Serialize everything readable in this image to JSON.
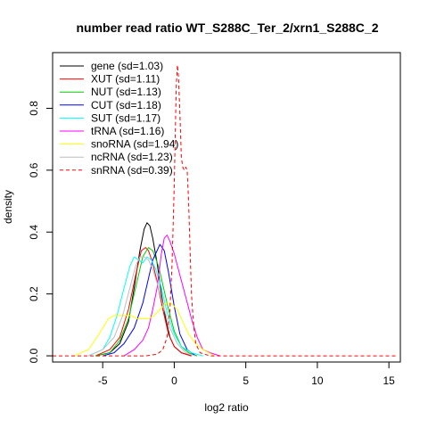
{
  "chart_data": {
    "type": "line",
    "title": "number read ratio WT_S288C_Ter_2/xrn1_S288C_2",
    "xlabel": "log2 ratio",
    "ylabel": "density",
    "xlim": [
      -8.5,
      15.8
    ],
    "ylim": [
      -0.02,
      0.98
    ],
    "x_ticks": [
      -5,
      0,
      5,
      10,
      15
    ],
    "y_ticks": [
      0.0,
      0.2,
      0.4,
      0.6,
      0.8
    ],
    "legend_position": "top-left",
    "series": [
      {
        "name": "gene (sd=1.03)",
        "color": "#000000",
        "dash": false,
        "points": [
          [
            -5.5,
            0.0
          ],
          [
            -4.5,
            0.01
          ],
          [
            -3.8,
            0.04
          ],
          [
            -3.2,
            0.11
          ],
          [
            -2.8,
            0.22
          ],
          [
            -2.4,
            0.34
          ],
          [
            -2.1,
            0.41
          ],
          [
            -1.9,
            0.43
          ],
          [
            -1.7,
            0.42
          ],
          [
            -1.5,
            0.38
          ],
          [
            -1.2,
            0.3
          ],
          [
            -0.9,
            0.2
          ],
          [
            -0.6,
            0.12
          ],
          [
            -0.3,
            0.06
          ],
          [
            0.0,
            0.03
          ],
          [
            0.5,
            0.01
          ],
          [
            1.2,
            0.0
          ]
        ]
      },
      {
        "name": "XUT (sd=1.11)",
        "color": "#ff0000",
        "dash": false,
        "points": [
          [
            -5.5,
            0.0
          ],
          [
            -4.5,
            0.02
          ],
          [
            -3.8,
            0.06
          ],
          [
            -3.2,
            0.15
          ],
          [
            -2.7,
            0.26
          ],
          [
            -2.3,
            0.34
          ],
          [
            -2.0,
            0.35
          ],
          [
            -1.8,
            0.34
          ],
          [
            -1.5,
            0.3
          ],
          [
            -1.2,
            0.24
          ],
          [
            -0.8,
            0.15
          ],
          [
            -0.4,
            0.07
          ],
          [
            0.0,
            0.03
          ],
          [
            0.5,
            0.01
          ],
          [
            1.2,
            0.0
          ]
        ]
      },
      {
        "name": "NUT (sd=1.13)",
        "color": "#00cc00",
        "dash": false,
        "points": [
          [
            -5.5,
            0.0
          ],
          [
            -4.5,
            0.01
          ],
          [
            -3.8,
            0.05
          ],
          [
            -3.2,
            0.12
          ],
          [
            -2.6,
            0.24
          ],
          [
            -2.2,
            0.32
          ],
          [
            -1.8,
            0.35
          ],
          [
            -1.5,
            0.34
          ],
          [
            -1.1,
            0.29
          ],
          [
            -0.8,
            0.23
          ],
          [
            -0.4,
            0.15
          ],
          [
            0.0,
            0.08
          ],
          [
            0.5,
            0.03
          ],
          [
            1.0,
            0.01
          ],
          [
            1.6,
            0.0
          ]
        ]
      },
      {
        "name": "CUT (sd=1.18)",
        "color": "#0000ff",
        "dash": false,
        "points": [
          [
            -5.0,
            0.0
          ],
          [
            -4.2,
            0.01
          ],
          [
            -3.5,
            0.04
          ],
          [
            -2.8,
            0.09
          ],
          [
            -2.2,
            0.17
          ],
          [
            -1.8,
            0.25
          ],
          [
            -1.5,
            0.31
          ],
          [
            -1.3,
            0.33
          ],
          [
            -1.0,
            0.36
          ],
          [
            -0.7,
            0.34
          ],
          [
            -0.4,
            0.27
          ],
          [
            0.0,
            0.16
          ],
          [
            0.4,
            0.07
          ],
          [
            0.9,
            0.02
          ],
          [
            1.5,
            0.0
          ]
        ]
      },
      {
        "name": "SUT (sd=1.17)",
        "color": "#00ffff",
        "dash": false,
        "points": [
          [
            -6.0,
            0.0
          ],
          [
            -5.0,
            0.02
          ],
          [
            -4.5,
            0.06
          ],
          [
            -4.0,
            0.13
          ],
          [
            -3.5,
            0.22
          ],
          [
            -3.1,
            0.29
          ],
          [
            -2.8,
            0.32
          ],
          [
            -2.5,
            0.31
          ],
          [
            -2.2,
            0.3
          ],
          [
            -1.9,
            0.32
          ],
          [
            -1.6,
            0.31
          ],
          [
            -1.3,
            0.28
          ],
          [
            -0.9,
            0.22
          ],
          [
            -0.5,
            0.14
          ],
          [
            0.0,
            0.07
          ],
          [
            0.5,
            0.03
          ],
          [
            1.2,
            0.01
          ],
          [
            2.0,
            0.0
          ]
        ]
      },
      {
        "name": "tRNA (sd=1.16)",
        "color": "#ff00ff",
        "dash": false,
        "points": [
          [
            -3.5,
            0.0
          ],
          [
            -2.8,
            0.02
          ],
          [
            -2.2,
            0.05
          ],
          [
            -1.8,
            0.09
          ],
          [
            -1.5,
            0.15
          ],
          [
            -1.2,
            0.22
          ],
          [
            -0.9,
            0.33
          ],
          [
            -0.7,
            0.38
          ],
          [
            -0.5,
            0.39
          ],
          [
            -0.3,
            0.37
          ],
          [
            0.0,
            0.33
          ],
          [
            0.4,
            0.26
          ],
          [
            0.8,
            0.19
          ],
          [
            1.2,
            0.12
          ],
          [
            1.6,
            0.06
          ],
          [
            2.0,
            0.02
          ],
          [
            2.5,
            0.01
          ],
          [
            3.2,
            0.0
          ]
        ]
      },
      {
        "name": "snoRNA (sd=1.94)",
        "color": "#ffff00",
        "dash": false,
        "points": [
          [
            -7.0,
            0.0
          ],
          [
            -6.0,
            0.02
          ],
          [
            -5.4,
            0.06
          ],
          [
            -5.0,
            0.09
          ],
          [
            -4.6,
            0.12
          ],
          [
            -4.2,
            0.13
          ],
          [
            -3.8,
            0.13
          ],
          [
            -3.4,
            0.13
          ],
          [
            -3.0,
            0.13
          ],
          [
            -2.6,
            0.12
          ],
          [
            -2.2,
            0.12
          ],
          [
            -1.8,
            0.12
          ],
          [
            -1.4,
            0.13
          ],
          [
            -1.0,
            0.15
          ],
          [
            -0.6,
            0.17
          ],
          [
            -0.2,
            0.17
          ],
          [
            0.2,
            0.15
          ],
          [
            0.6,
            0.11
          ],
          [
            1.0,
            0.07
          ],
          [
            1.5,
            0.04
          ],
          [
            2.0,
            0.02
          ],
          [
            2.8,
            0.0
          ]
        ]
      },
      {
        "name": "ncRNA (sd=1.23)",
        "color": "#bebebe",
        "dash": false,
        "points": [
          [
            -6.0,
            0.0
          ],
          [
            -5.0,
            0.02
          ],
          [
            -4.2,
            0.06
          ],
          [
            -3.6,
            0.13
          ],
          [
            -3.1,
            0.22
          ],
          [
            -2.7,
            0.29
          ],
          [
            -2.4,
            0.32
          ],
          [
            -2.1,
            0.32
          ],
          [
            -1.8,
            0.31
          ],
          [
            -1.5,
            0.28
          ],
          [
            -1.1,
            0.22
          ],
          [
            -0.7,
            0.15
          ],
          [
            -0.3,
            0.09
          ],
          [
            0.2,
            0.04
          ],
          [
            0.8,
            0.01
          ],
          [
            1.5,
            0.0
          ]
        ]
      },
      {
        "name": "snRNA (sd=0.39)",
        "color": "#ff0000",
        "dash": true,
        "points": [
          [
            -8.5,
            0.0
          ],
          [
            -2.0,
            0.0
          ],
          [
            -1.2,
            0.005
          ],
          [
            -0.8,
            0.02
          ],
          [
            -0.5,
            0.06
          ],
          [
            -0.3,
            0.15
          ],
          [
            -0.15,
            0.3
          ],
          [
            0.0,
            0.55
          ],
          [
            0.1,
            0.78
          ],
          [
            0.15,
            0.88
          ],
          [
            0.22,
            0.94
          ],
          [
            0.3,
            0.9
          ],
          [
            0.4,
            0.78
          ],
          [
            0.5,
            0.64
          ],
          [
            0.6,
            0.61
          ],
          [
            0.7,
            0.6
          ],
          [
            0.8,
            0.61
          ],
          [
            0.9,
            0.6
          ],
          [
            1.0,
            0.5
          ],
          [
            1.1,
            0.35
          ],
          [
            1.2,
            0.2
          ],
          [
            1.35,
            0.1
          ],
          [
            1.5,
            0.04
          ],
          [
            1.8,
            0.01
          ],
          [
            2.5,
            0.0
          ],
          [
            15.5,
            0.0
          ]
        ]
      }
    ]
  }
}
